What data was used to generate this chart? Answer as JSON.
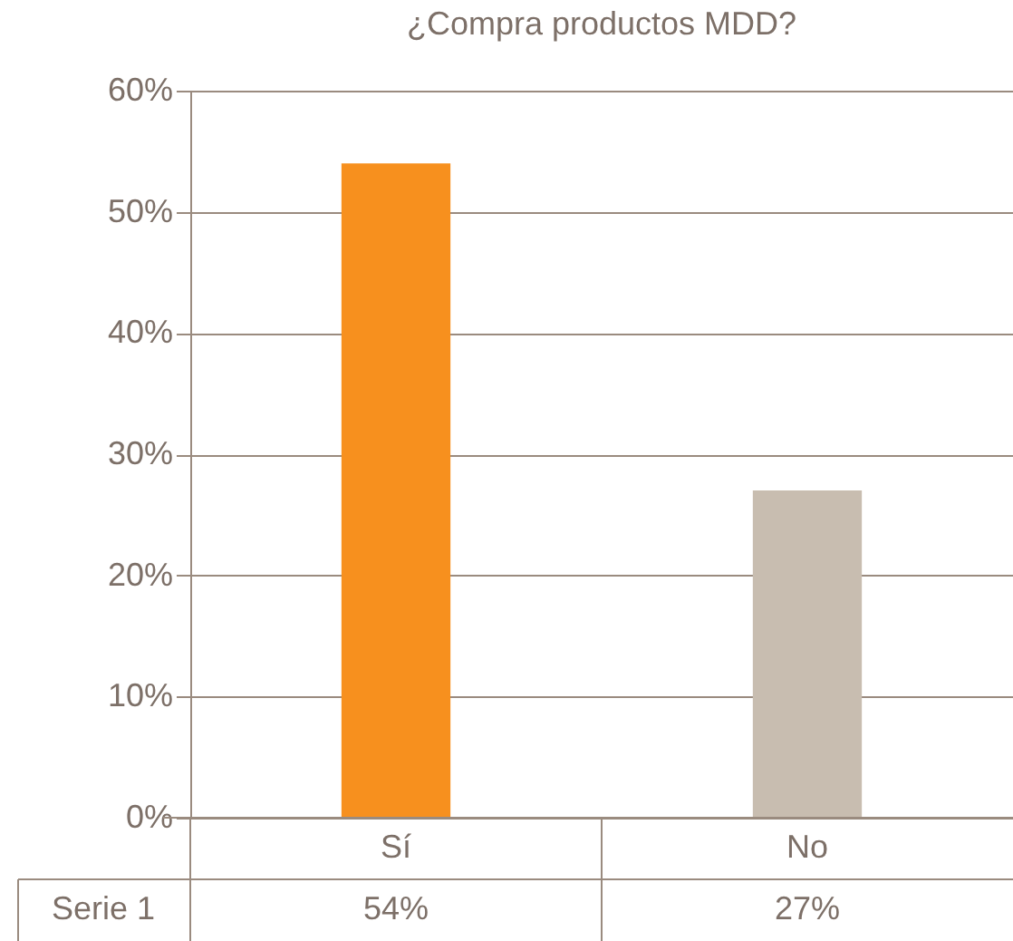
{
  "chart_data": {
    "type": "bar",
    "title": "¿Compra productos MDD?",
    "categories": [
      "Sí",
      "No"
    ],
    "series": [
      {
        "name": "Serie 1",
        "values": [
          54,
          27
        ],
        "colors": [
          "#f7901e",
          "#c8bdb0"
        ],
        "value_labels": [
          "54%",
          "27%"
        ]
      }
    ],
    "ylim": [
      0,
      60
    ],
    "yticks": [
      {
        "value": 0,
        "label": "0%"
      },
      {
        "value": 10,
        "label": "10%"
      },
      {
        "value": 20,
        "label": "20%"
      },
      {
        "value": 30,
        "label": "30%"
      },
      {
        "value": 40,
        "label": "40%"
      },
      {
        "value": 50,
        "label": "50%"
      },
      {
        "value": 60,
        "label": "60%"
      }
    ],
    "grid": "y"
  }
}
